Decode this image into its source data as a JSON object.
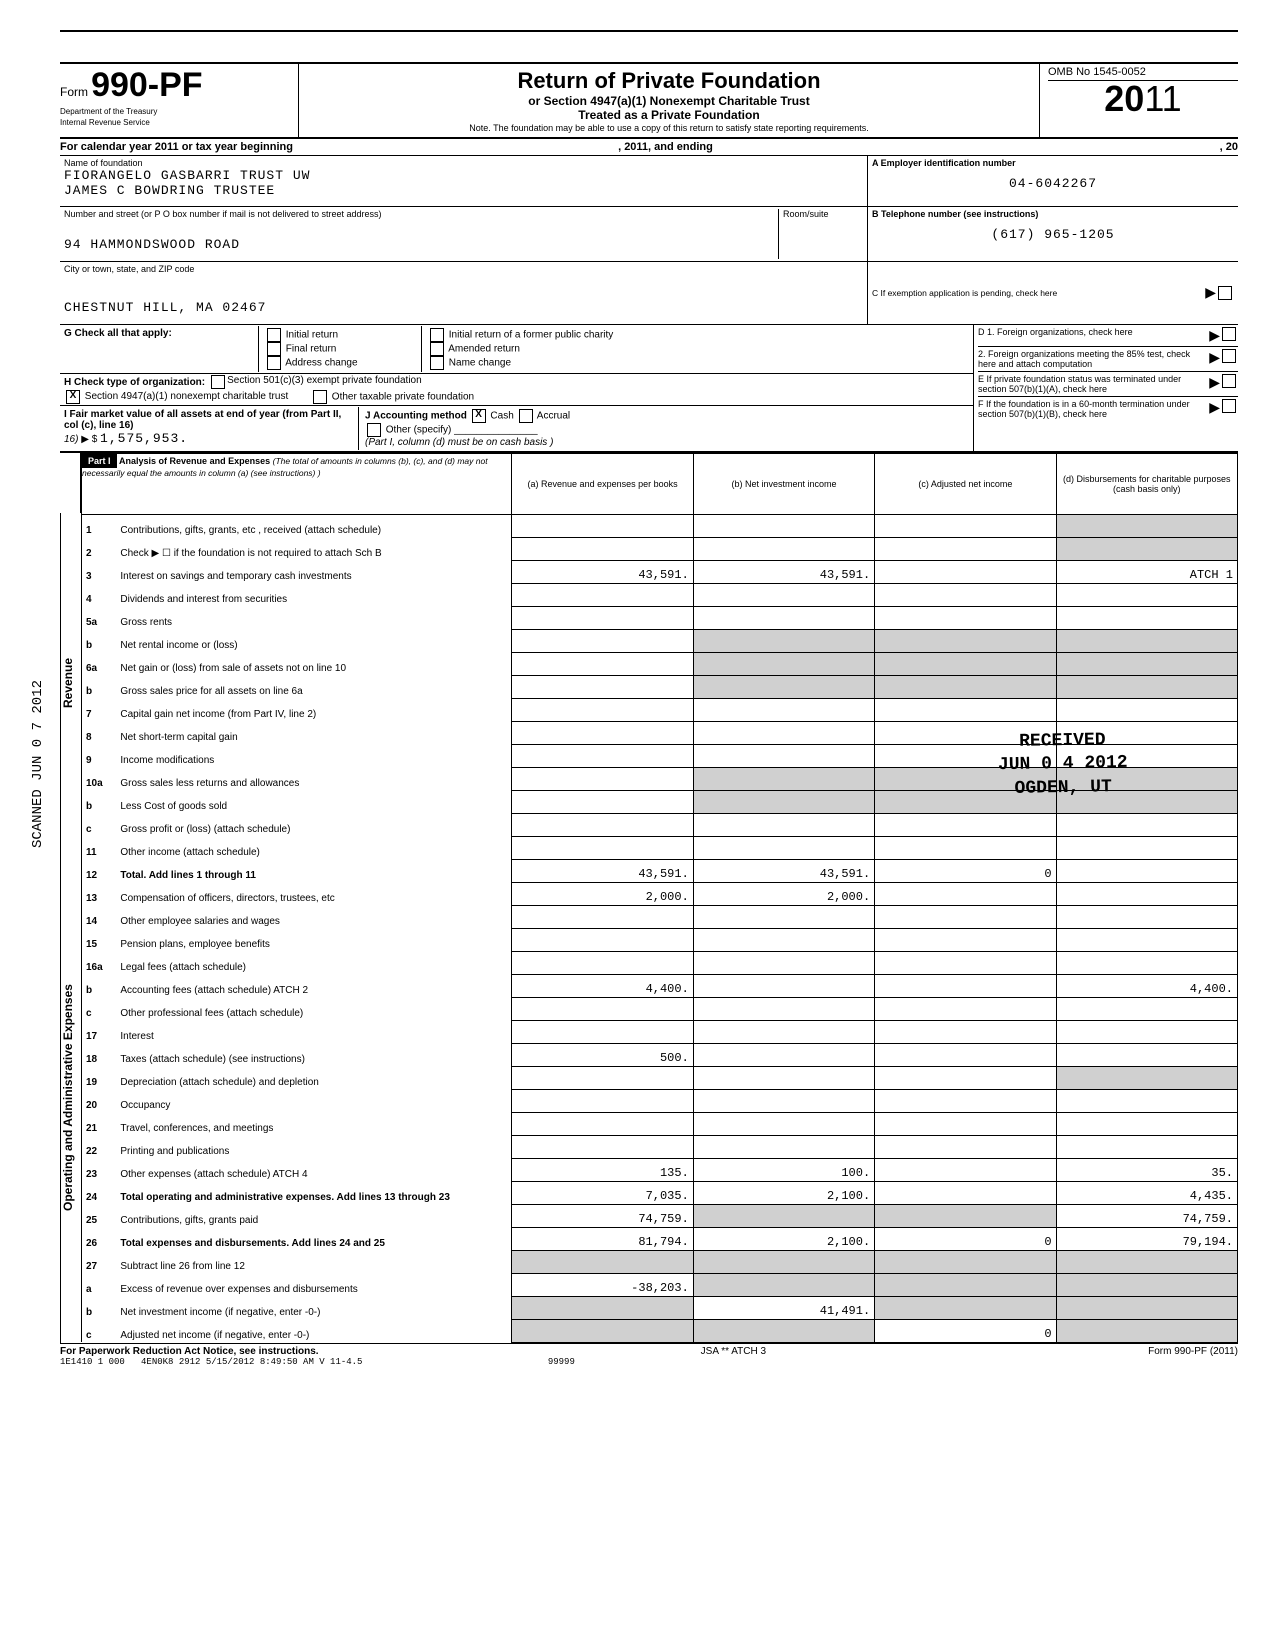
{
  "form": {
    "form_label": "Form",
    "number": "990-PF",
    "dept": "Department of the Treasury",
    "irs": "Internal Revenue Service",
    "title": "Return of Private Foundation",
    "subtitle1": "or Section 4947(a)(1) Nonexempt Charitable Trust",
    "subtitle2": "Treated as a Private Foundation",
    "note": "Note. The foundation may be able to use a copy of this return to satisfy state reporting requirements.",
    "omb": "OMB No 1545-0052",
    "year": "2011"
  },
  "calendar": {
    "text": "For calendar year 2011 or tax year beginning",
    "mid": ", 2011, and ending",
    "end": ", 20"
  },
  "foundation": {
    "name_label": "Name of foundation",
    "name1": "FIORANGELO GASBARRI TRUST UW",
    "name2": "JAMES C BOWDRING TRUSTEE",
    "addr_label": "Number and street (or P O  box number if mail is not delivered to street address)",
    "room_label": "Room/suite",
    "street": "94 HAMMONDSWOOD ROAD",
    "city_label": "City or town, state, and ZIP code",
    "city": "CHESTNUT HILL, MA 02467",
    "ein_label": "A  Employer identification number",
    "ein": "04-6042267",
    "phone_label": "B  Telephone number (see instructions)",
    "phone": "(617) 965-1205",
    "c_label": "C  If exemption application is pending, check here",
    "d1_label": "D  1. Foreign organizations, check here",
    "d2_label": "2. Foreign organizations meeting the 85% test, check here and attach computation",
    "e_label": "E  If private foundation status was terminated under section 507(b)(1)(A), check here",
    "f_label": "F  If the foundation is in a 60-month termination under section 507(b)(1)(B), check here"
  },
  "g": {
    "label": "G  Check all that apply:",
    "opts": [
      "Initial return",
      "Final return",
      "Address change",
      "Initial return of a former public charity",
      "Amended return",
      "Name change"
    ]
  },
  "h": {
    "label": "H  Check type of organization:",
    "opt1": "Section 501(c)(3) exempt private foundation",
    "opt2": "Section 4947(a)(1) nonexempt charitable trust",
    "opt3": "Other taxable private foundation"
  },
  "i": {
    "label": "I  Fair market value of all assets at end of year (from Part II, col (c), line 16)",
    "val_prefix": "▶ $",
    "val": "1,575,953.",
    "j_label": "J  Accounting method",
    "cash": "Cash",
    "accrual": "Accrual",
    "other": "Other (specify)",
    "note": "(Part I, column (d) must be on cash basis )"
  },
  "part1": {
    "label": "Part I",
    "title": "Analysis of Revenue and Expenses",
    "desc": "(The total of amounts in columns (b), (c), and (d) may not necessarily equal the amounts in column (a) (see instructions) )",
    "col_a": "(a) Revenue and expenses per books",
    "col_b": "(b) Net investment income",
    "col_c": "(c) Adjusted net income",
    "col_d": "(d) Disbursements for charitable purposes (cash basis only)"
  },
  "side_labels": {
    "revenue": "Revenue",
    "expenses": "Operating and Administrative Expenses",
    "scanned": "SCANNED JUN 0 7 2012"
  },
  "lines": [
    {
      "no": "1",
      "desc": "Contributions, gifts, grants, etc , received (attach schedule)"
    },
    {
      "no": "2",
      "desc": "Check ▶ ☐ if the foundation is not required to attach Sch B"
    },
    {
      "no": "3",
      "desc": "Interest on savings and temporary cash investments",
      "a": "43,591.",
      "b": "43,591.",
      "d": "ATCH 1"
    },
    {
      "no": "4",
      "desc": "Dividends and interest from securities"
    },
    {
      "no": "5a",
      "desc": "Gross rents"
    },
    {
      "no": "b",
      "desc": "Net rental income or (loss)"
    },
    {
      "no": "6a",
      "desc": "Net gain or (loss) from sale of assets not on line 10"
    },
    {
      "no": "b",
      "desc": "Gross sales price for all assets on line 6a"
    },
    {
      "no": "7",
      "desc": "Capital gain net income (from Part IV, line 2)"
    },
    {
      "no": "8",
      "desc": "Net short-term capital gain"
    },
    {
      "no": "9",
      "desc": "Income modifications"
    },
    {
      "no": "10a",
      "desc": "Gross sales less returns and allowances"
    },
    {
      "no": "b",
      "desc": "Less Cost of goods sold"
    },
    {
      "no": "c",
      "desc": "Gross profit or (loss) (attach schedule)"
    },
    {
      "no": "11",
      "desc": "Other income (attach schedule)"
    },
    {
      "no": "12",
      "desc": "Total. Add lines 1 through 11",
      "a": "43,591.",
      "b": "43,591.",
      "c": "0"
    },
    {
      "no": "13",
      "desc": "Compensation of officers, directors, trustees, etc",
      "a": "2,000.",
      "b": "2,000."
    },
    {
      "no": "14",
      "desc": "Other employee salaries and wages"
    },
    {
      "no": "15",
      "desc": "Pension plans, employee benefits"
    },
    {
      "no": "16a",
      "desc": "Legal fees (attach schedule)"
    },
    {
      "no": "b",
      "desc": "Accounting fees (attach schedule) ATCH 2",
      "a": "4,400.",
      "d": "4,400."
    },
    {
      "no": "c",
      "desc": "Other professional fees (attach schedule)"
    },
    {
      "no": "17",
      "desc": "Interest"
    },
    {
      "no": "18",
      "desc": "Taxes (attach schedule) (see instructions)",
      "a": "500."
    },
    {
      "no": "19",
      "desc": "Depreciation (attach schedule) and depletion"
    },
    {
      "no": "20",
      "desc": "Occupancy"
    },
    {
      "no": "21",
      "desc": "Travel, conferences, and meetings"
    },
    {
      "no": "22",
      "desc": "Printing and publications"
    },
    {
      "no": "23",
      "desc": "Other expenses (attach schedule) ATCH 4",
      "a": "135.",
      "b": "100.",
      "d": "35."
    },
    {
      "no": "24",
      "desc": "Total operating and administrative expenses. Add lines 13 through 23",
      "a": "7,035.",
      "b": "2,100.",
      "d": "4,435."
    },
    {
      "no": "25",
      "desc": "Contributions, gifts, grants paid",
      "a": "74,759.",
      "d": "74,759."
    },
    {
      "no": "26",
      "desc": "Total expenses and disbursements. Add lines 24 and 25",
      "a": "81,794.",
      "b": "2,100.",
      "c": "0",
      "d": "79,194."
    },
    {
      "no": "27",
      "desc": "Subtract line 26 from line 12"
    },
    {
      "no": "a",
      "desc": "Excess of revenue over expenses and disbursements",
      "a": "-38,203."
    },
    {
      "no": "b",
      "desc": "Net investment income (if negative, enter -0-)",
      "b": "41,491."
    },
    {
      "no": "c",
      "desc": "Adjusted net income (if negative, enter -0-)",
      "c": "0"
    }
  ],
  "stamp": {
    "received": "RECEIVED",
    "date": "JUN 0 4 2012",
    "loc": "OGDEN, UT"
  },
  "footer": {
    "paperwork": "For Paperwork Reduction Act Notice, see instructions.",
    "code": "1E1410 1 000",
    "mid": "4EN0K8 2912 5/15/2012  8:49:50 AM  V 11-4.5",
    "num": "99999",
    "jsa": "JSA  **  ATCH 3",
    "form": "Form 990-PF (2011)"
  }
}
